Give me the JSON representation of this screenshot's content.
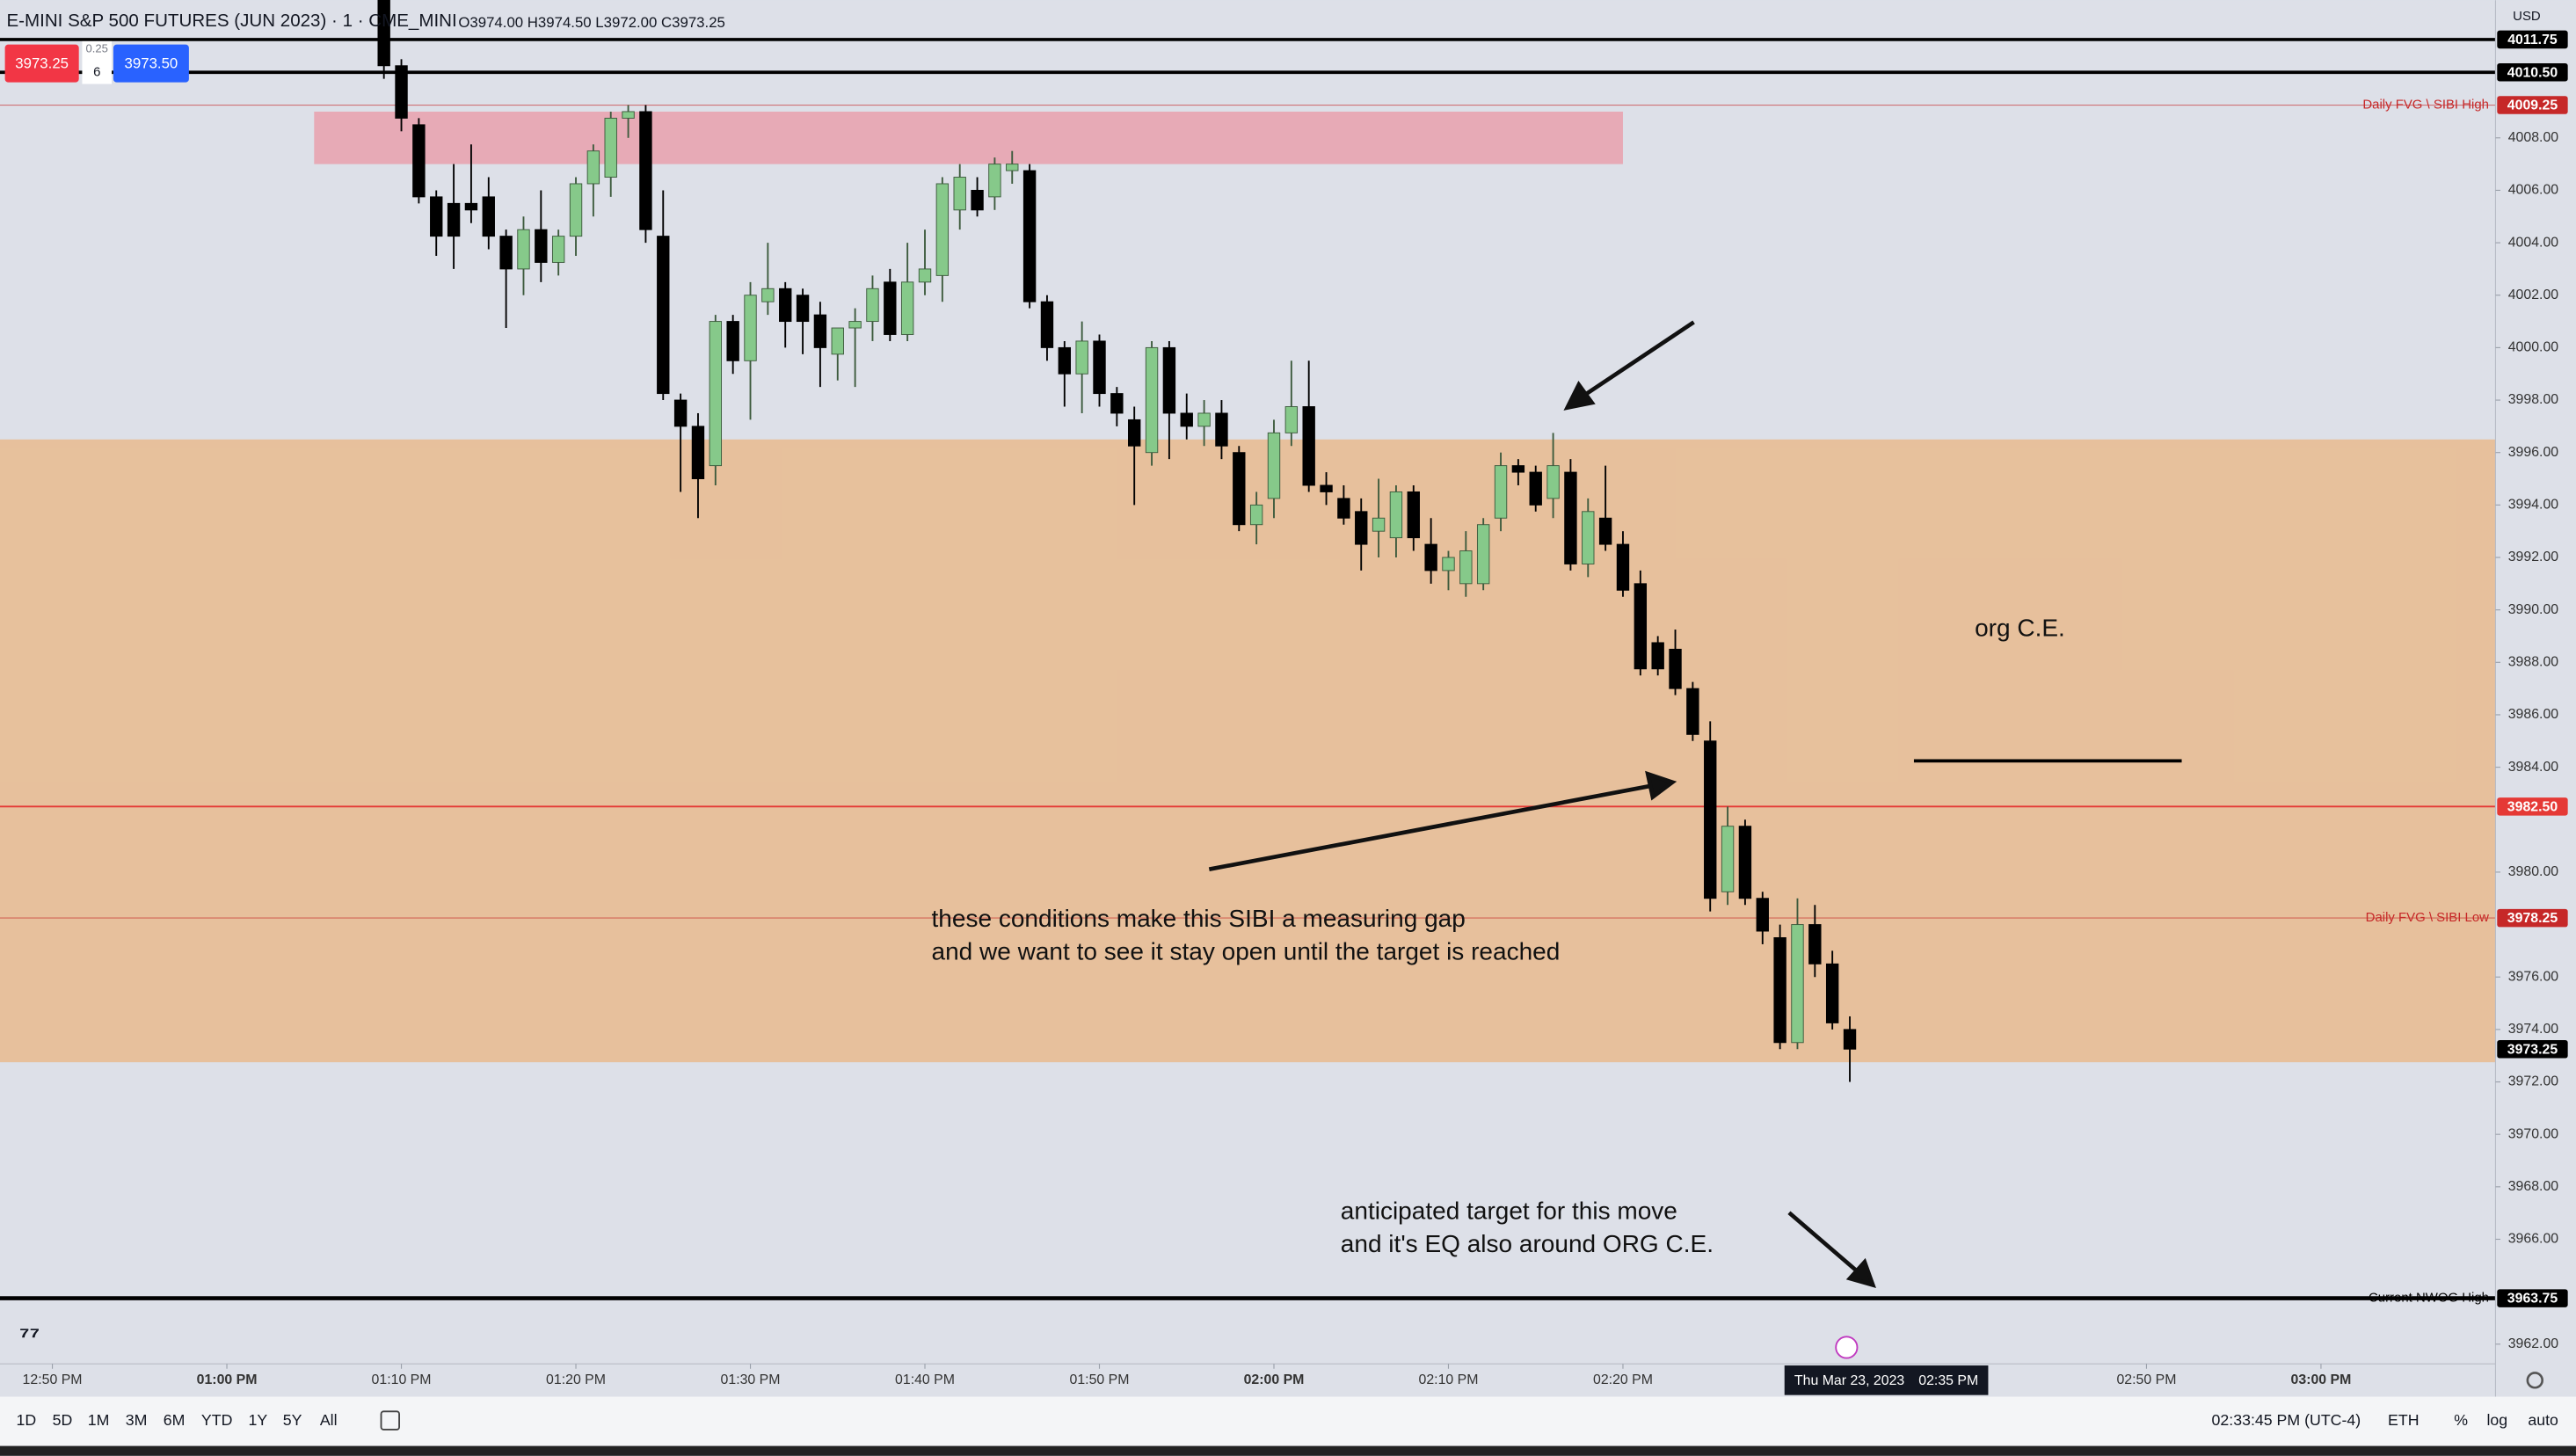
{
  "header": {
    "symbol": "E-MINI S&P 500 FUTURES (JUN 2023) · 1 · CME_MINI",
    "ohlc": "O3974.00 H3974.50 L3972.00 C3973.25",
    "sell_price": "3973.25",
    "spread": "0.25",
    "quantity": "6",
    "buy_price": "3973.50",
    "currency": "USD"
  },
  "chart_data": {
    "type": "candlestick",
    "x": [
      "01:09 PM",
      "01:10 PM",
      "01:11 PM",
      "01:12 PM",
      "01:13 PM",
      "01:14 PM",
      "01:15 PM",
      "01:16 PM",
      "01:17 PM",
      "01:18 PM",
      "01:19 PM",
      "01:20 PM",
      "01:21 PM",
      "01:22 PM",
      "01:23 PM",
      "01:24 PM",
      "01:25 PM",
      "01:26 PM",
      "01:27 PM",
      "01:28 PM",
      "01:29 PM",
      "01:30 PM",
      "01:31 PM",
      "01:32 PM",
      "01:33 PM",
      "01:34 PM",
      "01:35 PM",
      "01:36 PM",
      "01:37 PM",
      "01:38 PM",
      "01:39 PM",
      "01:40 PM",
      "01:41 PM",
      "01:42 PM",
      "01:43 PM",
      "01:44 PM",
      "01:45 PM",
      "01:46 PM",
      "01:47 PM",
      "01:48 PM",
      "01:49 PM",
      "01:50 PM",
      "01:51 PM",
      "01:52 PM",
      "01:53 PM",
      "01:54 PM",
      "01:55 PM",
      "01:56 PM",
      "01:57 PM",
      "01:58 PM",
      "01:59 PM",
      "02:00 PM",
      "02:01 PM",
      "02:02 PM",
      "02:03 PM",
      "02:04 PM",
      "02:05 PM",
      "02:06 PM",
      "02:07 PM",
      "02:08 PM",
      "02:09 PM",
      "02:10 PM",
      "02:11 PM",
      "02:12 PM",
      "02:13 PM",
      "02:14 PM",
      "02:15 PM",
      "02:16 PM",
      "02:17 PM",
      "02:18 PM",
      "02:19 PM",
      "02:20 PM",
      "02:21 PM",
      "02:22 PM",
      "02:23 PM",
      "02:24 PM",
      "02:25 PM",
      "02:26 PM",
      "02:27 PM",
      "02:28 PM",
      "02:29 PM",
      "02:30 PM",
      "02:31 PM",
      "02:32 PM",
      "02:33 PM"
    ],
    "open": [
      4013.25,
      4010.75,
      4008.5,
      4005.75,
      4005.5,
      4005.5,
      4005.75,
      4004.25,
      4003,
      4004.5,
      4003.25,
      4004.25,
      4006.25,
      4006.5,
      4008.75,
      4009,
      4004.25,
      3998,
      3997,
      3995.5,
      4001,
      3999.5,
      4001.75,
      4002.25,
      4002,
      4001.25,
      3999.75,
      4000.75,
      4001,
      4002.5,
      4000.5,
      4002.5,
      4002.75,
      4005.25,
      4006,
      4005.75,
      4006.75,
      4006.75,
      4001.75,
      4000,
      3999,
      4000.25,
      3998.25,
      3997.25,
      3996,
      4000,
      3997.5,
      3997,
      3997.5,
      3996,
      3993.25,
      3994.25,
      3996.75,
      3997.75,
      3994.75,
      3994.25,
      3993.75,
      3993,
      3992.75,
      3994.5,
      3992.5,
      3991.5,
      3991,
      3991,
      3993.5,
      3995.5,
      3995.25,
      3994.25,
      3995.25,
      3991.75,
      3993.5,
      3992.5,
      3991,
      3988.75,
      3988.5,
      3987,
      3985,
      3979.25,
      3981.75,
      3979,
      3977.5,
      3973.5,
      3978,
      3976.5,
      3974
    ],
    "high": [
      4013.5,
      4011,
      4008.75,
      4006,
      4007,
      4007.75,
      4006.5,
      4004.5,
      4005,
      4006,
      4004.5,
      4006.5,
      4007.75,
      4009,
      4009.25,
      4009.25,
      4006,
      3998.25,
      3997.5,
      4001.25,
      4001.25,
      4002.5,
      4004,
      4002.5,
      4002.25,
      4001.75,
      4000.75,
      4001.5,
      4002.75,
      4003,
      4004,
      4004.5,
      4006.5,
      4007,
      4006.5,
      4007.25,
      4007.5,
      4007,
      4002,
      4000.25,
      4001,
      4000.5,
      3998.5,
      3997.75,
      4000.25,
      4000.25,
      3998.25,
      3998,
      3998,
      3996.25,
      3994.5,
      3997.25,
      3999.5,
      3999.5,
      3995.25,
      3994.75,
      3994.25,
      3995,
      3994.75,
      3994.75,
      3993.5,
      3992.25,
      3993,
      3993.5,
      3996,
      3995.75,
      3995.5,
      3996.75,
      3995.75,
      3994.25,
      3995.5,
      3993,
      3991.5,
      3989,
      3989.25,
      3987.25,
      3985.75,
      3982.5,
      3982,
      3979.25,
      3978,
      3979,
      3978.75,
      3977,
      3974.5
    ],
    "low": [
      4010.25,
      4008.25,
      4005.5,
      4003.5,
      4003,
      4004.75,
      4003.75,
      4000.75,
      4002,
      4002.5,
      4002.75,
      4003.5,
      4005,
      4005.75,
      4008,
      4004,
      3998,
      3994.5,
      3993.5,
      3994.75,
      3999,
      3997.25,
      4001.25,
      4000,
      3999.75,
      3998.5,
      3998.75,
      3998.5,
      4000.25,
      4000.25,
      4000.25,
      4002,
      4001.75,
      4004.5,
      4005,
      4005.25,
      4006.25,
      4001.5,
      3999.5,
      3997.75,
      3997.5,
      3997.75,
      3997,
      3994,
      3995.5,
      3995.75,
      3996.5,
      3996.25,
      3995.75,
      3993,
      3992.5,
      3993.5,
      3996.25,
      3994.5,
      3994,
      3993.25,
      3991.5,
      3992,
      3992,
      3992.25,
      3991,
      3990.75,
      3990.5,
      3990.75,
      3993,
      3994.75,
      3993.75,
      3993.5,
      3991.5,
      3991.25,
      3992.25,
      3990.5,
      3987.5,
      3987.5,
      3986.75,
      3985,
      3978.5,
      3978.75,
      3978.75,
      3977.25,
      3973.25,
      3973.25,
      3976,
      3974,
      3972
    ],
    "close": [
      4010.75,
      4008.75,
      4005.75,
      4004.25,
      4004.25,
      4005.25,
      4004.25,
      4003,
      4004.5,
      4003.25,
      4004.25,
      4006.25,
      4007.5,
      4008.75,
      4009,
      4004.5,
      3998.25,
      3997,
      3995,
      4001,
      3999.5,
      4002,
      4002.25,
      4001,
      4001,
      4000,
      4000.75,
      4001,
      4002.25,
      4000.5,
      4002.5,
      4003,
      4006.25,
      4006.5,
      4005.25,
      4007,
      4007,
      4001.75,
      4000,
      3999,
      4000.25,
      3998.25,
      3997.5,
      3996.25,
      4000,
      3997.5,
      3997,
      3997.5,
      3996.25,
      3993.25,
      3994,
      3996.75,
      3997.75,
      3994.75,
      3994.5,
      3993.5,
      3992.5,
      3993.5,
      3994.5,
      3992.75,
      3991.5,
      3992,
      3992.25,
      3993.25,
      3995.5,
      3995.25,
      3994,
      3995.5,
      3991.75,
      3993.75,
      3992.5,
      3990.75,
      3987.75,
      3987.75,
      3987,
      3985.25,
      3979,
      3981.75,
      3979,
      3977.75,
      3973.5,
      3978,
      3976.5,
      3974.25,
      3973.25
    ],
    "up_color": "#86c98a",
    "down_color": "#000000",
    "xlim": [
      "12:47 PM",
      "03:10 PM"
    ],
    "xticks": [
      "12:50 PM",
      "01:00 PM",
      "01:10 PM",
      "01:20 PM",
      "01:30 PM",
      "01:40 PM",
      "01:50 PM",
      "02:00 PM",
      "02:10 PM",
      "02:20 PM",
      "02:50 PM",
      "03:00 PM"
    ],
    "ylim": [
      3961.25,
      4013.25
    ],
    "yticks": [
      {
        "value": 4008,
        "label": "4008.00"
      },
      {
        "value": 4006,
        "label": "4006.00"
      },
      {
        "value": 4004,
        "label": "4004.00"
      },
      {
        "value": 4002,
        "label": "4002.00"
      },
      {
        "value": 4000,
        "label": "4000.00"
      },
      {
        "value": 3998,
        "label": "3998.00"
      },
      {
        "value": 3996,
        "label": "3996.00"
      },
      {
        "value": 3994,
        "label": "3994.00"
      },
      {
        "value": 3992,
        "label": "3992.00"
      },
      {
        "value": 3990,
        "label": "3990.00"
      },
      {
        "value": 3988,
        "label": "3988.00"
      },
      {
        "value": 3986,
        "label": "3986.00"
      },
      {
        "value": 3984,
        "label": "3984.00"
      },
      {
        "value": 3980,
        "label": "3980.00"
      },
      {
        "value": 3976,
        "label": "3976.00"
      },
      {
        "value": 3974,
        "label": "3974.00"
      },
      {
        "value": 3972,
        "label": "3972.00"
      },
      {
        "value": 3970,
        "label": "3970.00"
      },
      {
        "value": 3968,
        "label": "3968.00"
      },
      {
        "value": 3966,
        "label": "3966.00"
      },
      {
        "value": 3962,
        "label": "3962.00"
      }
    ],
    "grid": false,
    "zones": [
      {
        "top": 4009,
        "bottom": 4007,
        "start": "01:05 PM",
        "end": "02:20 PM",
        "color": "#e8a4b0"
      },
      {
        "top": 3996.5,
        "bottom": 3972.75,
        "color": "#e8bd94"
      }
    ],
    "levels": [
      {
        "value": 4011.75,
        "label": "4011.75",
        "color": "#000000",
        "width": 2
      },
      {
        "value": 4010.5,
        "label": "4010.50",
        "color": "#000000",
        "width": 2
      },
      {
        "value": 4009.25,
        "label": "4009.25",
        "name": "Daily FVG \\ SIBI High",
        "color": "#c62828",
        "width": 0.6
      },
      {
        "value": 3982.5,
        "label": "3982.50",
        "color": "#e53935",
        "width": 1
      },
      {
        "value": 3978.25,
        "label": "3978.25",
        "name": "Daily FVG \\ SIBI Low",
        "color": "#c62828",
        "width": 0.6
      },
      {
        "value": 3973.25,
        "label": "3973.25",
        "color": "#000000",
        "width": 0
      },
      {
        "value": 3963.75,
        "label": "3963.75",
        "name": "Current NWOG High",
        "color": "#000000",
        "width": 2.5
      }
    ],
    "crosshair": {
      "date": "Thu Mar 23, 2023",
      "time": "02:35 PM"
    },
    "annotations": [
      "org C.E.",
      "these conditions make this SIBI a measuring gap",
      "and we want to see it stay open until the target is reached",
      "anticipated target for this move",
      "and it's EQ also around ORG C.E."
    ]
  },
  "toolbar": {
    "ranges": [
      "1D",
      "5D",
      "1M",
      "3M",
      "6M",
      "YTD",
      "1Y",
      "5Y",
      "All"
    ],
    "clock": "02:33:45 PM (UTC-4)",
    "session": "ETH",
    "options": [
      "%",
      "log",
      "auto"
    ]
  }
}
